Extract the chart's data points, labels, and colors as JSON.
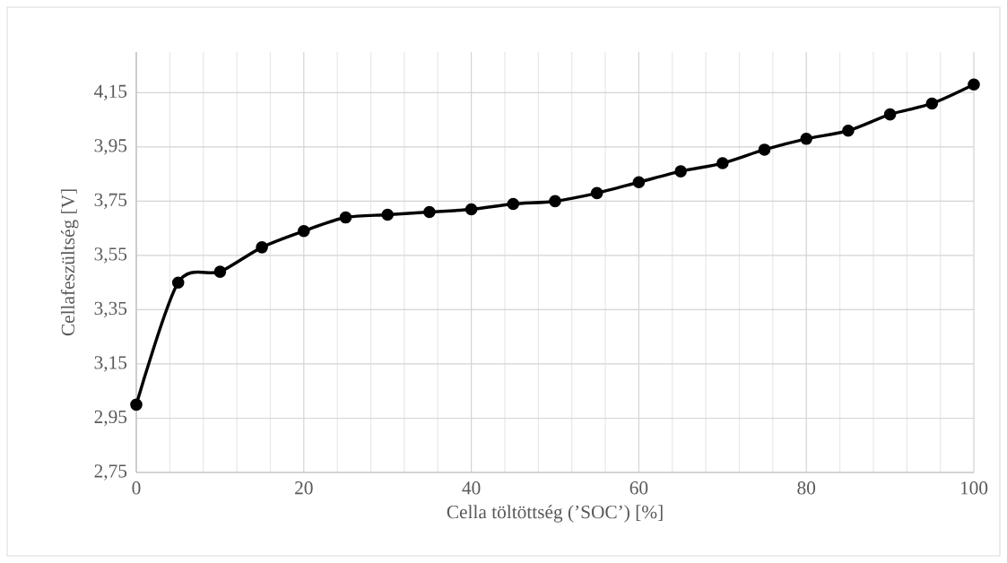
{
  "chart_data": {
    "type": "line",
    "xlabel": "Cella töltöttség (’SOC’) [%]",
    "ylabel": "Cellafeszültség [V]",
    "x": [
      0,
      5,
      10,
      15,
      20,
      25,
      30,
      35,
      40,
      45,
      50,
      55,
      60,
      65,
      70,
      75,
      80,
      85,
      90,
      95,
      100
    ],
    "values": [
      3.0,
      3.45,
      3.49,
      3.58,
      3.64,
      3.69,
      3.7,
      3.71,
      3.72,
      3.74,
      3.75,
      3.78,
      3.82,
      3.86,
      3.89,
      3.94,
      3.98,
      4.01,
      4.07,
      4.11,
      4.18
    ],
    "color": "#000000",
    "marker": "circle",
    "line_style": "solid",
    "grid": true,
    "xlim": [
      0,
      100
    ],
    "ylim": [
      2.75,
      4.3
    ],
    "xticks": [
      0,
      {
        "value": 4,
        "label": null
      },
      {
        "value": 8,
        "label": null
      },
      {
        "value": 12,
        "label": null
      },
      {
        "value": 16,
        "label": null
      },
      20,
      {
        "value": 24,
        "label": null
      },
      {
        "value": 28,
        "label": null
      },
      {
        "value": 32,
        "label": null
      },
      {
        "value": 36,
        "label": null
      },
      40,
      {
        "value": 44,
        "label": null
      },
      {
        "value": 48,
        "label": null
      },
      {
        "value": 52,
        "label": null
      },
      {
        "value": 56,
        "label": null
      },
      60,
      {
        "value": 64,
        "label": null
      },
      {
        "value": 68,
        "label": null
      },
      {
        "value": 72,
        "label": null
      },
      {
        "value": 76,
        "label": null
      },
      80,
      {
        "value": 84,
        "label": null
      },
      {
        "value": 88,
        "label": null
      },
      {
        "value": 92,
        "label": null
      },
      {
        "value": 96,
        "label": null
      },
      100
    ],
    "yticks": [
      {
        "value": 2.75,
        "label": "2,75"
      },
      {
        "value": 2.95,
        "label": "2,95"
      },
      {
        "value": 3.15,
        "label": "3,15"
      },
      {
        "value": 3.35,
        "label": "3,35"
      },
      {
        "value": 3.55,
        "label": "3,55"
      },
      {
        "value": 3.75,
        "label": "3,75"
      },
      {
        "value": 3.95,
        "label": "3,95"
      },
      {
        "value": 4.15,
        "label": "4,15"
      }
    ]
  }
}
